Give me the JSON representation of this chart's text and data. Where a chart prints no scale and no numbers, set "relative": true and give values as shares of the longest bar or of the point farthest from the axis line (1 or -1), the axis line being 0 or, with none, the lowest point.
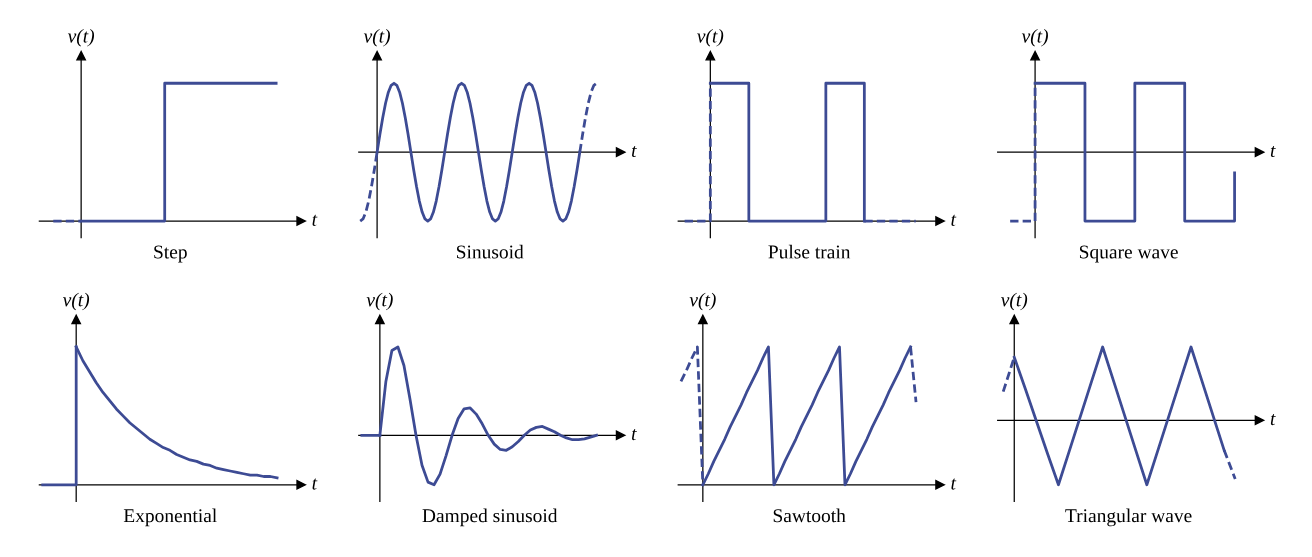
{
  "chart_data": [
    {
      "type": "step",
      "title": "Step",
      "xlabel": "t",
      "ylabel": "v(t)",
      "relative": true,
      "categories": [
        null,
        null,
        null,
        null,
        null,
        null,
        null,
        null,
        null
      ],
      "series": [
        {
          "color": "#3d4b94",
          "type": "step",
          "values": [
            null,
            0,
            0,
            0,
            1,
            1,
            1,
            1,
            1
          ]
        },
        {
          "color": "#3d4b94",
          "type": "step",
          "line_style": "dashed",
          "values": [
            0,
            0,
            null,
            null,
            null,
            null,
            null,
            null,
            null
          ]
        }
      ]
    },
    {
      "type": "line",
      "title": "Sinusoid",
      "xlabel": "t",
      "ylabel": "v(t)",
      "relative": true,
      "categories": [
        null,
        null,
        null,
        null,
        null,
        null,
        null,
        null,
        null,
        null,
        null,
        null,
        null,
        null,
        null,
        null,
        null,
        null,
        null,
        null,
        null,
        null,
        null,
        null,
        null,
        null,
        null,
        null,
        null,
        null,
        null,
        null,
        null,
        null,
        null,
        null,
        null,
        null,
        null,
        null,
        null,
        null,
        null,
        null,
        null,
        null,
        null,
        null,
        null,
        null,
        null,
        null,
        null,
        null,
        null,
        null,
        null,
        null,
        null,
        null,
        null,
        null,
        null,
        null,
        null,
        null,
        null,
        null,
        null,
        null,
        null,
        null,
        null,
        null,
        null,
        null,
        null,
        null,
        null,
        null,
        null,
        null,
        null,
        null,
        null
      ],
      "series": [
        {
          "color": "#3d4b94",
          "values": [
            null,
            null,
            null,
            null,
            null,
            null,
            0,
            0.26,
            0.5,
            0.71,
            0.87,
            0.97,
            1,
            0.97,
            0.87,
            0.71,
            0.5,
            0.26,
            0,
            -0.26,
            -0.5,
            -0.71,
            -0.87,
            -0.97,
            -1,
            -0.97,
            -0.87,
            -0.71,
            -0.5,
            -0.26,
            0,
            0.26,
            0.5,
            0.71,
            0.87,
            0.97,
            1,
            0.97,
            0.87,
            0.71,
            0.5,
            0.26,
            0,
            -0.26,
            -0.5,
            -0.71,
            -0.87,
            -0.97,
            -1,
            -0.97,
            -0.87,
            -0.71,
            -0.5,
            -0.26,
            0,
            0.26,
            0.5,
            0.71,
            0.87,
            0.97,
            1,
            0.97,
            0.87,
            0.71,
            0.5,
            0.26,
            0,
            -0.26,
            -0.5,
            -0.71,
            -0.87,
            -0.97,
            -1,
            -0.97,
            -0.87,
            -0.71,
            -0.5,
            -0.26,
            0,
            null,
            null,
            null,
            null,
            null,
            null
          ]
        },
        {
          "color": "#3d4b94",
          "line_style": "dashed",
          "values": [
            -1,
            -0.97,
            -0.87,
            -0.71,
            -0.5,
            -0.26,
            0,
            null,
            null,
            null,
            null,
            null,
            null,
            null,
            null,
            null,
            null,
            null,
            null,
            null,
            null,
            null,
            null,
            null,
            null,
            null,
            null,
            null,
            null,
            null,
            null,
            null,
            null,
            null,
            null,
            null,
            null,
            null,
            null,
            null,
            null,
            null,
            null,
            null,
            null,
            null,
            null,
            null,
            null,
            null,
            null,
            null,
            null,
            null,
            null,
            null,
            null,
            null,
            null,
            null,
            null,
            null,
            null,
            null,
            null,
            null,
            null,
            null,
            null,
            null,
            null,
            null,
            null,
            null,
            null,
            null,
            null,
            null,
            0,
            0.26,
            0.5,
            0.71,
            0.87,
            0.97,
            1
          ]
        }
      ]
    },
    {
      "type": "step",
      "title": "Pulse train",
      "xlabel": "t",
      "ylabel": "v(t)",
      "relative": true,
      "categories": [
        null,
        null,
        null,
        null,
        null,
        null,
        null,
        null,
        null,
        null,
        null,
        null,
        null,
        null,
        null,
        null,
        null,
        null,
        null
      ],
      "series": [
        {
          "color": "#3d4b94",
          "type": "step",
          "values": [
            null,
            null,
            1,
            1,
            1,
            0,
            0,
            0,
            0,
            0,
            0,
            1,
            1,
            1,
            0,
            null,
            null,
            null,
            null
          ]
        },
        {
          "color": "#3d4b94",
          "type": "step",
          "line_style": "dashed",
          "values": [
            0,
            0,
            1,
            null,
            null,
            null,
            null,
            null,
            null,
            null,
            null,
            null,
            null,
            null,
            0,
            0,
            0,
            0,
            0
          ]
        }
      ]
    },
    {
      "type": "step",
      "title": "Square wave",
      "xlabel": "t",
      "ylabel": "v(t)",
      "relative": true,
      "categories": [
        null,
        null,
        null,
        null,
        null,
        null,
        null,
        null,
        null,
        null
      ],
      "series": [
        {
          "color": "#3d4b94",
          "type": "step",
          "values": [
            null,
            1,
            1,
            -1,
            -1,
            1,
            1,
            -1,
            -1,
            -0.3
          ]
        },
        {
          "color": "#3d4b94",
          "type": "step",
          "line_style": "dashed",
          "values": [
            -1,
            1,
            null,
            null,
            null,
            null,
            null,
            null,
            null,
            null
          ]
        }
      ]
    },
    {
      "type": "line",
      "title": "Exponential",
      "xlabel": "t",
      "ylabel": "v(t)",
      "relative": true,
      "categories": [
        null,
        null,
        null,
        null,
        null,
        null,
        null,
        null,
        null,
        null,
        null,
        null,
        null,
        null,
        null,
        null,
        null,
        null,
        null,
        null,
        null,
        null,
        null,
        null,
        null,
        null,
        null,
        null,
        null,
        null,
        null,
        null,
        null,
        null,
        null,
        null
      ],
      "series": [
        {
          "color": "#3d4b94",
          "values": [
            null,
            null,
            null,
            null,
            null,
            1,
            0.9,
            0.82,
            0.74,
            0.67,
            0.61,
            0.55,
            0.5,
            0.45,
            0.41,
            0.37,
            0.33,
            0.3,
            0.27,
            0.25,
            0.22,
            0.2,
            0.18,
            0.17,
            0.15,
            0.14,
            0.12,
            0.11,
            0.1,
            0.09,
            0.08,
            0.07,
            0.07,
            0.06,
            0.06,
            0.05
          ]
        },
        {
          "color": "#3d4b94",
          "type": "step",
          "values": [
            0,
            0,
            0,
            0,
            0,
            1,
            null,
            null,
            null,
            null,
            null,
            null,
            null,
            null,
            null,
            null,
            null,
            null,
            null,
            null,
            null,
            null,
            null,
            null,
            null,
            null,
            null,
            null,
            null,
            null,
            null,
            null,
            null,
            null,
            null,
            null
          ]
        }
      ]
    },
    {
      "type": "line",
      "title": "Damped sinusoid",
      "xlabel": "t",
      "ylabel": "v(t)",
      "relative": true,
      "categories": [
        null,
        null,
        null,
        null,
        null,
        null,
        null,
        null,
        null,
        null,
        null,
        null,
        null,
        null,
        null,
        null,
        null,
        null,
        null,
        null,
        null,
        null,
        null,
        null,
        null,
        null,
        null,
        null,
        null,
        null,
        null,
        null,
        null,
        null,
        null,
        null,
        null,
        null,
        null,
        null
      ],
      "series": [
        {
          "color": "#3d4b94",
          "values": [
            null,
            null,
            null,
            0,
            0.61,
            0.96,
            1,
            0.79,
            0.41,
            0,
            -0.34,
            -0.53,
            -0.56,
            -0.44,
            -0.23,
            0,
            0.19,
            0.3,
            0.31,
            0.24,
            0.13,
            0,
            -0.1,
            -0.16,
            -0.17,
            -0.13,
            -0.07,
            0,
            0.06,
            0.09,
            0.1,
            0.07,
            0.04,
            0,
            -0.03,
            -0.05,
            -0.05,
            -0.04,
            -0.02,
            0
          ]
        },
        {
          "color": "#3d4b94",
          "values": [
            0,
            0,
            0,
            0,
            null,
            null,
            null,
            null,
            null,
            null,
            null,
            null,
            null,
            null,
            null,
            null,
            null,
            null,
            null,
            null,
            null,
            null,
            null,
            null,
            null,
            null,
            null,
            null,
            null,
            null,
            null,
            null,
            null,
            null,
            null,
            null,
            null,
            null,
            null,
            null
          ]
        }
      ]
    },
    {
      "type": "line",
      "title": "Sawtooth",
      "xlabel": "t",
      "ylabel": "v(t)",
      "relative": true,
      "categories": [
        null,
        null,
        null,
        null,
        null,
        null,
        null,
        null,
        null,
        null,
        null,
        null,
        null,
        null,
        null,
        null,
        null,
        null,
        null,
        null,
        null,
        null,
        null,
        null,
        null,
        null,
        null,
        null,
        null,
        null,
        null,
        null,
        null,
        null,
        null,
        null,
        null,
        null,
        null,
        null,
        null,
        null,
        null,
        null
      ],
      "series": [
        {
          "color": "#3d4b94",
          "values": [
            null,
            null,
            null,
            null,
            0,
            0.08,
            0.17,
            0.25,
            0.33,
            0.42,
            0.5,
            0.58,
            0.67,
            0.75,
            0.83,
            0.92,
            1,
            0,
            0.08,
            0.17,
            0.25,
            0.33,
            0.42,
            0.5,
            0.58,
            0.67,
            0.75,
            0.83,
            0.92,
            1,
            0,
            0.08,
            0.17,
            0.25,
            0.33,
            0.42,
            0.5,
            0.58,
            0.67,
            0.75,
            0.83,
            0.92,
            1,
            null
          ]
        },
        {
          "color": "#3d4b94",
          "line_style": "dashed",
          "values": [
            0.75,
            0.83,
            0.92,
            1,
            0,
            null,
            null,
            null,
            null,
            null,
            null,
            null,
            null,
            null,
            null,
            null,
            null,
            null,
            null,
            null,
            null,
            null,
            null,
            null,
            null,
            null,
            null,
            null,
            null,
            null,
            null,
            null,
            null,
            null,
            null,
            null,
            null,
            null,
            null,
            null,
            null,
            null,
            1,
            0.6
          ]
        }
      ]
    },
    {
      "type": "line",
      "title": "Triangular wave",
      "xlabel": "t",
      "ylabel": "v(t)",
      "relative": true,
      "categories": [
        null,
        null,
        null,
        null,
        null,
        null,
        null,
        null,
        null,
        null,
        null,
        null,
        null,
        null,
        null,
        null,
        null,
        null,
        null,
        null,
        null,
        null
      ],
      "series": [
        {
          "color": "#3d4b94",
          "values": [
            null,
            0.86,
            0.43,
            -0.01,
            -0.45,
            -0.88,
            -0.41,
            0.06,
            0.53,
            1,
            0.53,
            0.06,
            -0.41,
            -0.88,
            -0.41,
            0.06,
            0.53,
            1,
            0.53,
            0.06,
            -0.41,
            null
          ]
        },
        {
          "color": "#3d4b94",
          "line_style": "dashed",
          "values": [
            0.39,
            0.86,
            null,
            null,
            null,
            null,
            null,
            null,
            null,
            null,
            null,
            null,
            null,
            null,
            null,
            null,
            null,
            null,
            null,
            null,
            -0.41,
            -0.8
          ]
        }
      ]
    }
  ]
}
